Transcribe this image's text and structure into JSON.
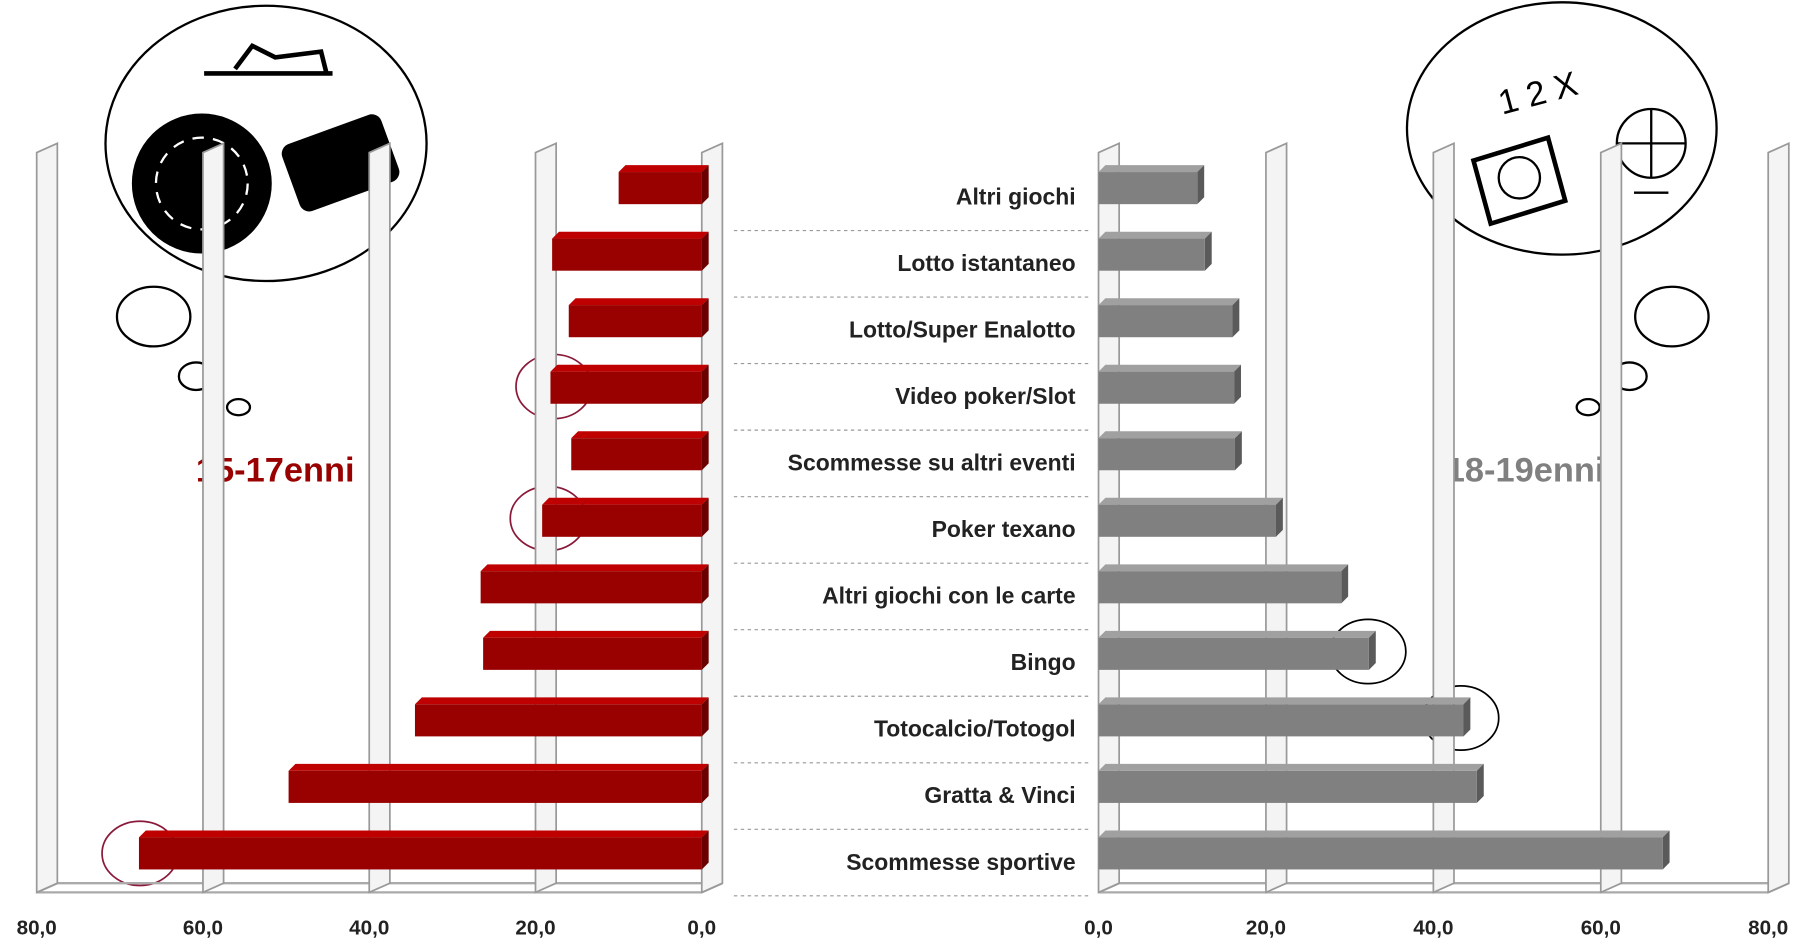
{
  "chart_data": {
    "type": "butterfly",
    "categories": [
      "Altri giochi",
      "Lotto istantaneo",
      "Lotto/Super Enalotto",
      "Video poker/Slot",
      "Scommesse su altri eventi",
      "Poker texano",
      "Altri giochi con le carte",
      "Bingo",
      "Totocalcio/Totogol",
      "Gratta & Vinci",
      "Scommesse sportive"
    ],
    "series": [
      {
        "name": "15-17enni",
        "color": "#990000",
        "values": [
          10,
          18,
          16,
          18.2,
          15.7,
          19.2,
          26.6,
          26.3,
          34.5,
          49.7,
          67.7
        ]
      },
      {
        "name": "18-19enni",
        "color": "#808080",
        "values": [
          11.8,
          12.7,
          16,
          16.2,
          16.3,
          21.2,
          29,
          32.3,
          43.6,
          45.2,
          67.4
        ]
      }
    ],
    "xlim": [
      0,
      80
    ],
    "xticks": [
      {
        "value": 0,
        "label": "0,0"
      },
      {
        "value": 20,
        "label": "20,0"
      },
      {
        "value": 40,
        "label": "40,0"
      },
      {
        "value": 60,
        "label": "60,0"
      },
      {
        "value": 80,
        "label": "80,0"
      }
    ],
    "grid": true,
    "annotations": [
      "1 2 X"
    ]
  }
}
